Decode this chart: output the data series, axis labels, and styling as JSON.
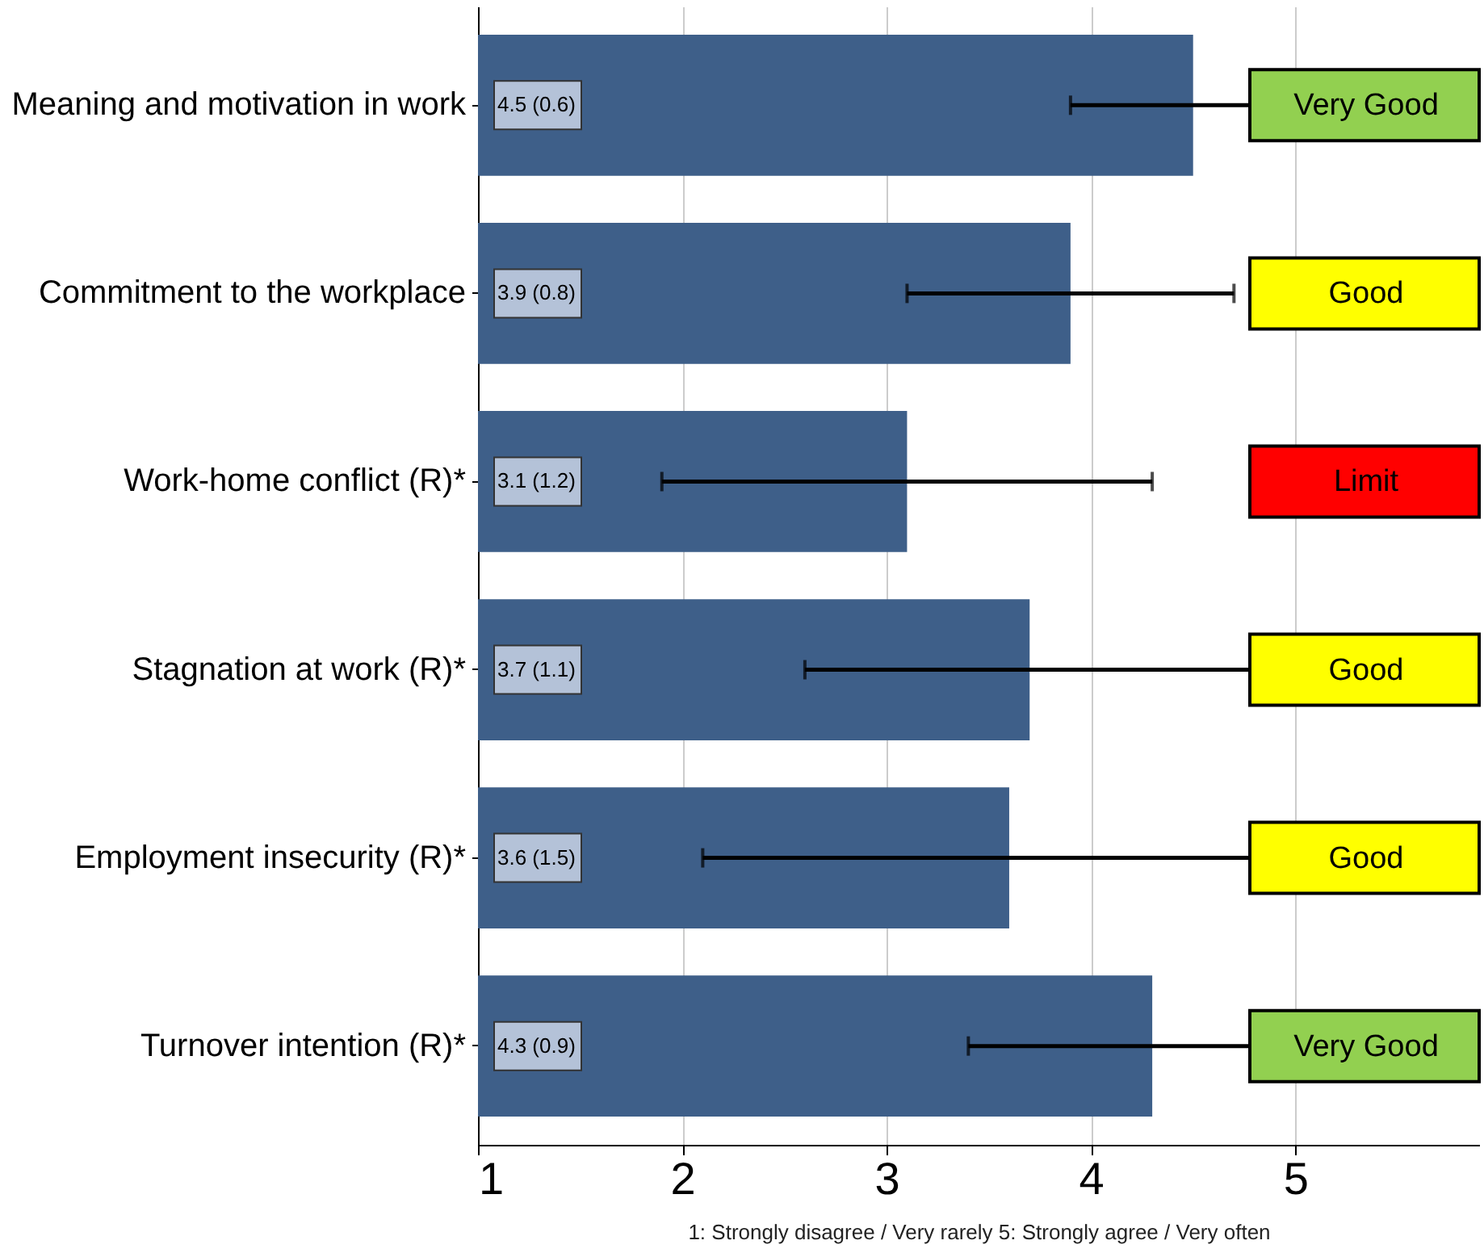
{
  "chart_data": {
    "type": "bar",
    "orientation": "horizontal",
    "xlabel": "1: Strongly disagree / Very rarely   5: Strongly agree / Very often",
    "categories": [
      "Meaning and motivation in work",
      "Commitment to the workplace",
      "Work-home conflict (R)*",
      "Stagnation at work (R)*",
      "Employment insecurity (R)*",
      "Turnover intention (R)*"
    ],
    "values": [
      4.5,
      3.9,
      3.1,
      3.7,
      3.6,
      4.3
    ],
    "errors": [
      0.6,
      0.8,
      1.2,
      1.1,
      1.5,
      0.9
    ],
    "value_labels": [
      "4.5 (0.6)",
      "3.9 (0.8)",
      "3.1 (1.2)",
      "3.7 (1.1)",
      "3.6 (1.5)",
      "4.3 (0.9)"
    ],
    "color": "#3e5f89",
    "xlim": [
      1,
      5.9
    ],
    "xticks": [
      1,
      2,
      3,
      4,
      5
    ],
    "grid": "x",
    "annotations": [
      "Very Good",
      "Good",
      "Limit",
      "Good",
      "Good",
      "Very Good"
    ]
  }
}
